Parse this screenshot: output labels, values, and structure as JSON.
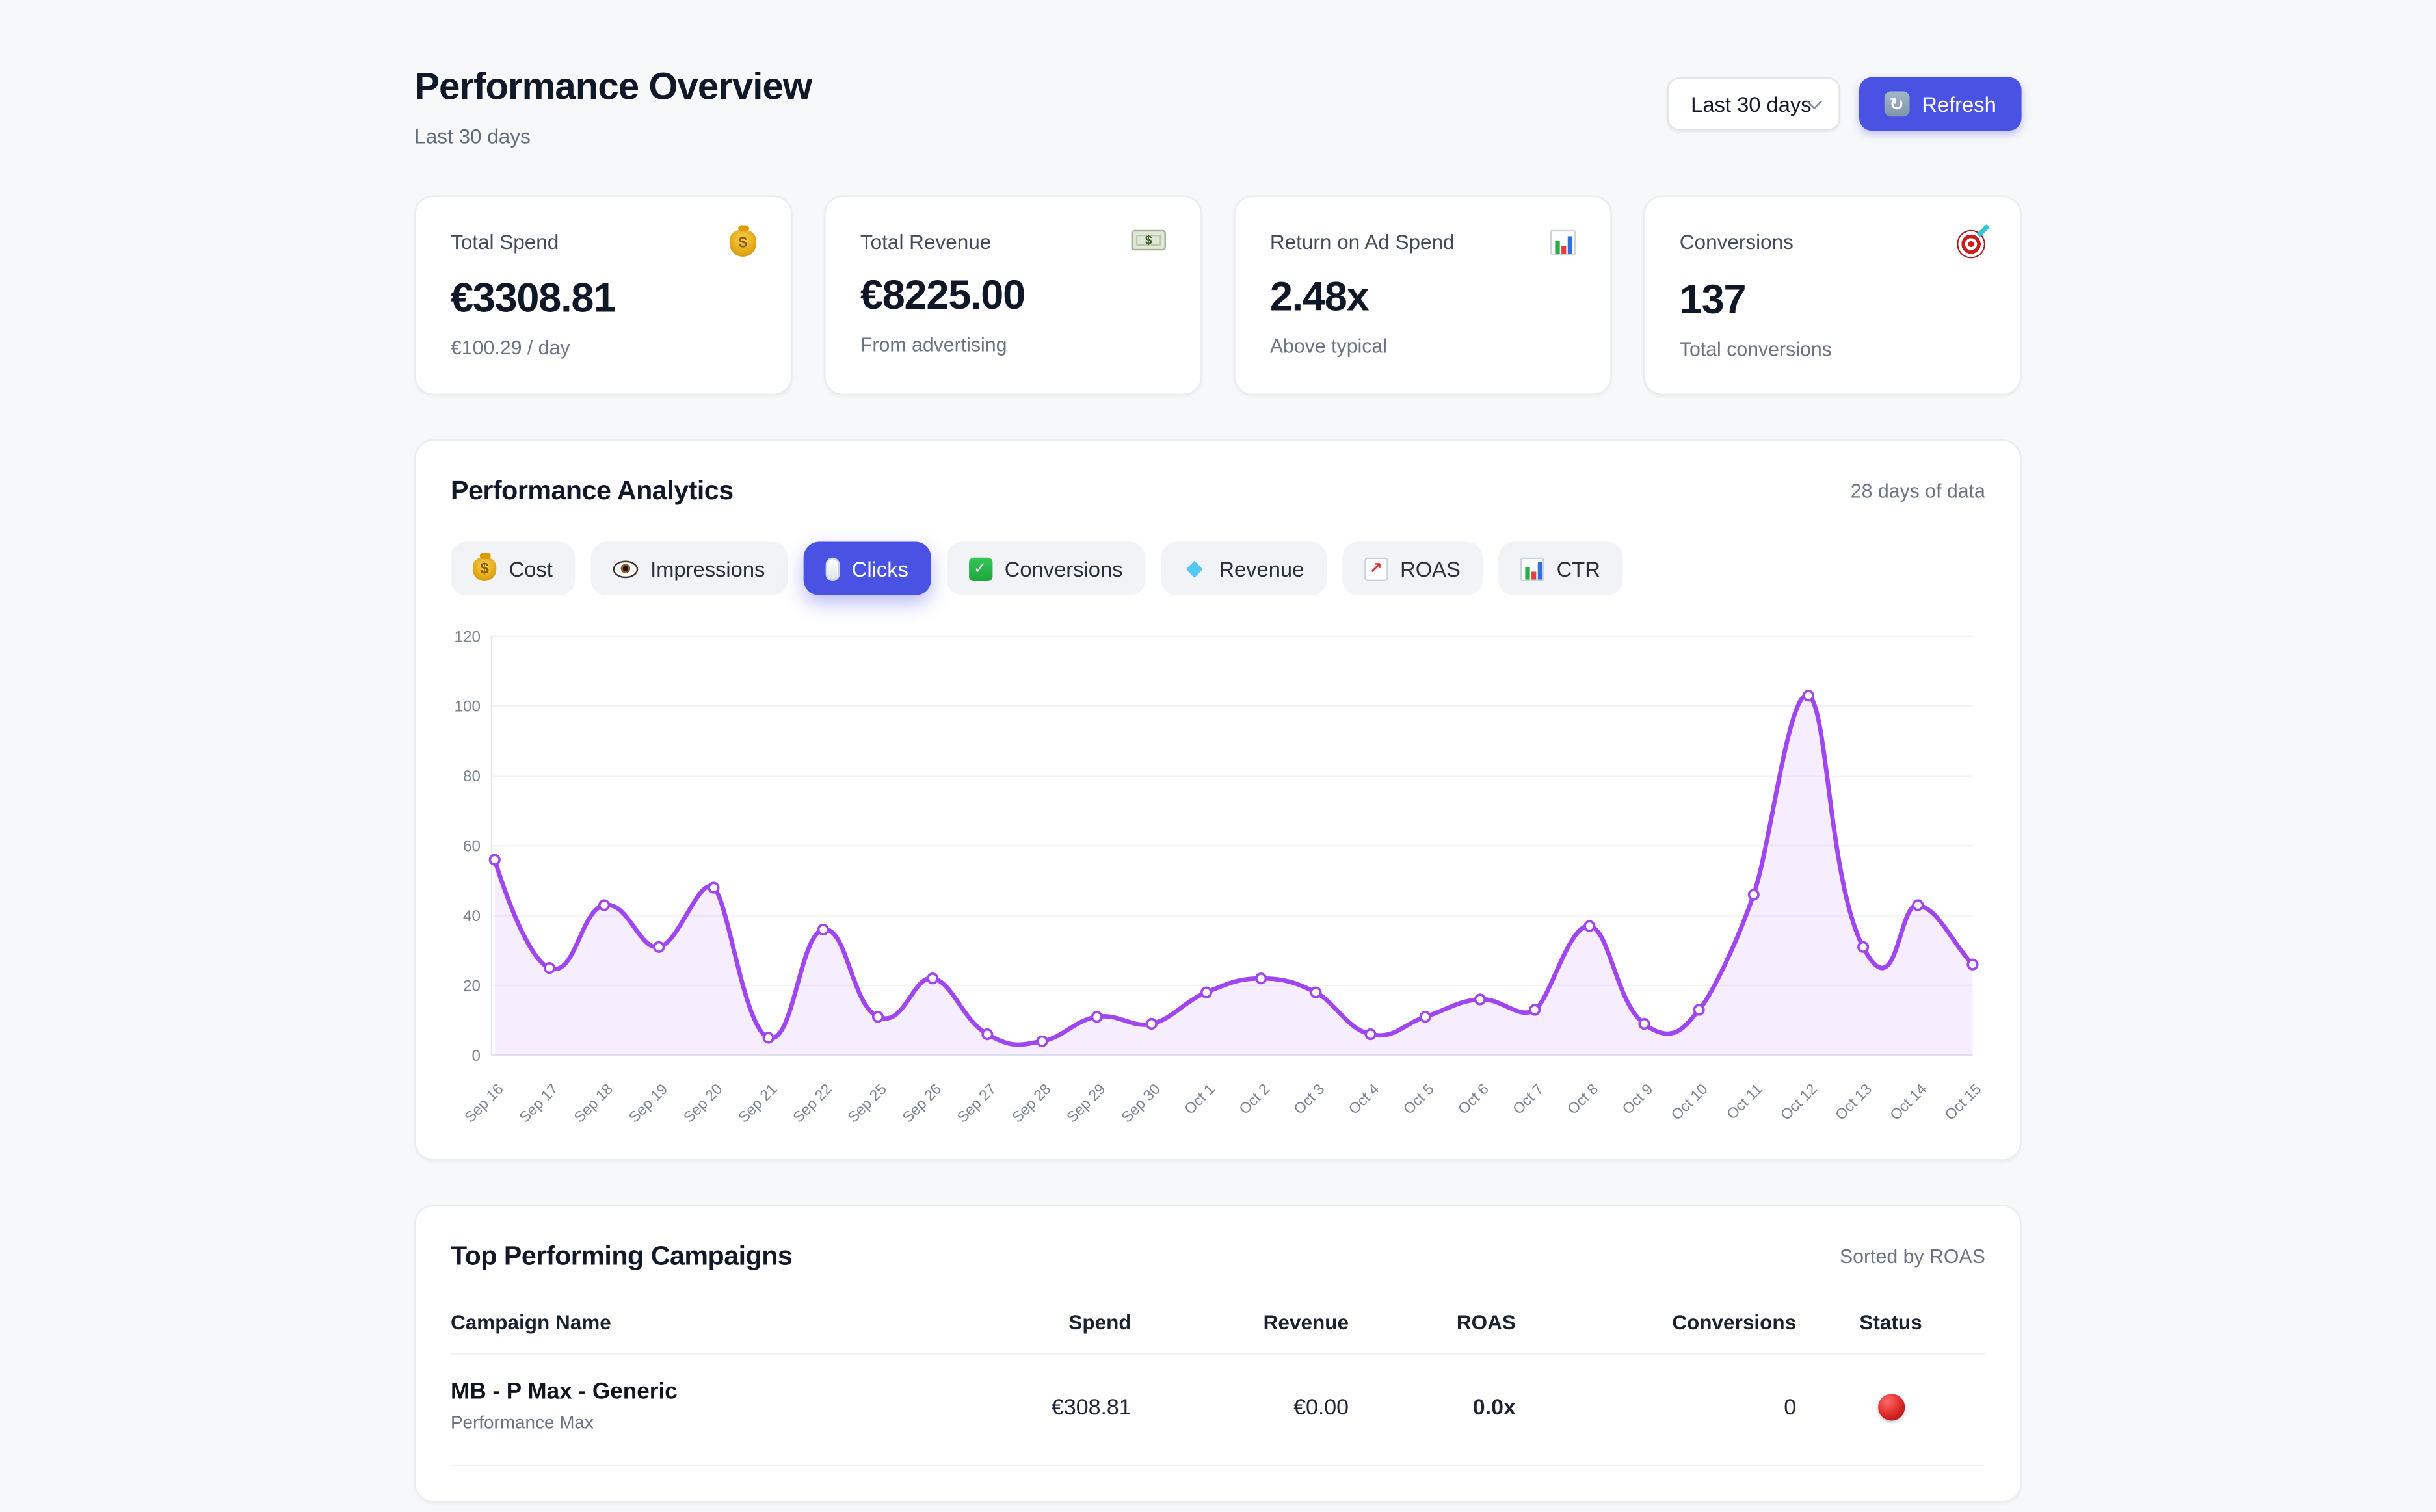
{
  "header": {
    "title": "Performance Overview",
    "subtitle": "Last 30 days",
    "range_value": "Last 30 days",
    "refresh_label": "Refresh"
  },
  "metrics": [
    {
      "label": "Total Spend",
      "icon": "money-bag-icon",
      "value": "€3308.81",
      "sub": "€100.29 / day"
    },
    {
      "label": "Total Revenue",
      "icon": "banknote-icon",
      "value": "€8225.00",
      "sub": "From advertising"
    },
    {
      "label": "Return on Ad Spend",
      "icon": "bar-chart-icon",
      "value": "2.48x",
      "sub": "Above typical"
    },
    {
      "label": "Conversions",
      "icon": "target-icon",
      "value": "137",
      "sub": "Total conversions"
    }
  ],
  "analytics": {
    "title": "Performance Analytics",
    "days_note": "28 days of data",
    "tabs": [
      {
        "label": "Cost",
        "icon": "money-bag-icon",
        "active": false
      },
      {
        "label": "Impressions",
        "icon": "eye-icon",
        "active": false
      },
      {
        "label": "Clicks",
        "icon": "mouse-icon",
        "active": true
      },
      {
        "label": "Conversions",
        "icon": "check-icon",
        "active": false
      },
      {
        "label": "Revenue",
        "icon": "gem-icon",
        "active": false
      },
      {
        "label": "ROAS",
        "icon": "chart-up-icon",
        "active": false
      },
      {
        "label": "CTR",
        "icon": "bar-chart-icon",
        "active": false
      }
    ]
  },
  "chart_data": {
    "type": "line",
    "title": "Performance Analytics",
    "categories": [
      "Sep 16",
      "Sep 17",
      "Sep 18",
      "Sep 19",
      "Sep 20",
      "Sep 21",
      "Sep 22",
      "Sep 25",
      "Sep 26",
      "Sep 27",
      "Sep 28",
      "Sep 29",
      "Sep 30",
      "Oct 1",
      "Oct 2",
      "Oct 3",
      "Oct 4",
      "Oct 5",
      "Oct 6",
      "Oct 7",
      "Oct 8",
      "Oct 9",
      "Oct 10",
      "Oct 11",
      "Oct 12",
      "Oct 13",
      "Oct 14",
      "Oct 15"
    ],
    "series": [
      {
        "name": "Clicks",
        "values": [
          56,
          25,
          43,
          31,
          48,
          5,
          36,
          11,
          22,
          6,
          4,
          11,
          9,
          18,
          22,
          18,
          6,
          11,
          16,
          13,
          37,
          9,
          13,
          46,
          103,
          31,
          43,
          26
        ]
      }
    ],
    "ylim": [
      0,
      120
    ],
    "yticks": [
      0,
      20,
      40,
      60,
      80,
      100,
      120
    ],
    "grid": true,
    "legend": "none",
    "x_label_rotation": -45,
    "line_color": "#a046f0",
    "fill_color": "rgba(168,85,247,0.10)",
    "point_style": "hollow-circle"
  },
  "campaigns": {
    "title": "Top Performing Campaigns",
    "sort_note": "Sorted by ROAS",
    "columns": [
      "Campaign Name",
      "Spend",
      "Revenue",
      "ROAS",
      "Conversions",
      "Status"
    ],
    "rows": [
      {
        "name": "MB - P Max - Generic",
        "type": "Performance Max",
        "spend": "€308.81",
        "revenue": "€0.00",
        "roas": "0.0x",
        "conversions": "0",
        "status": "red"
      }
    ]
  },
  "colors": {
    "accent": "#4a52e4",
    "chart_line": "#a046f0",
    "status_red": "#dc2626",
    "page_bg": "#f7f8fa"
  }
}
